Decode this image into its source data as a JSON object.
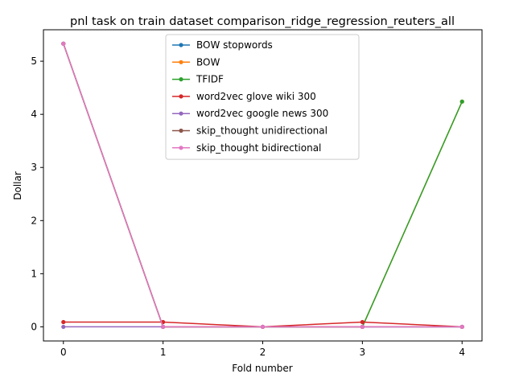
{
  "chart_data": {
    "type": "line",
    "title": "pnl task on train dataset comparison_ridge_regression_reuters_all",
    "xlabel": "Fold number",
    "ylabel": "Dollar",
    "x": [
      0,
      1,
      2,
      3,
      4
    ],
    "xlim": [
      -0.2,
      4.2
    ],
    "ylim": [
      -0.266,
      5.592
    ],
    "xticks": [
      0,
      1,
      2,
      3,
      4
    ],
    "yticks": [
      0,
      1,
      2,
      3,
      4,
      5
    ],
    "grid": false,
    "legend_position": "top-center",
    "series": [
      {
        "name": "BOW stopwords",
        "color": "#1f77b4",
        "values": [
          5.33,
          0.0,
          0.0,
          0.0,
          0.0
        ]
      },
      {
        "name": "BOW",
        "color": "#ff7f0e",
        "values": [
          5.33,
          0.0,
          0.0,
          0.0,
          4.24
        ]
      },
      {
        "name": "TFIDF",
        "color": "#2ca02c",
        "values": [
          5.33,
          0.0,
          0.0,
          0.0,
          4.24
        ]
      },
      {
        "name": "word2vec glove wiki 300",
        "color": "#d62728",
        "values": [
          0.09,
          0.09,
          0.0,
          0.09,
          0.0
        ]
      },
      {
        "name": "word2vec google news 300",
        "color": "#9467bd",
        "values": [
          0.0,
          0.0,
          0.0,
          0.0,
          0.0
        ]
      },
      {
        "name": "skip_thought unidirectional",
        "color": "#8c564b",
        "values": [
          5.33,
          0.0,
          0.0,
          0.0,
          0.0
        ]
      },
      {
        "name": "skip_thought bidirectional",
        "color": "#e377c2",
        "values": [
          5.33,
          0.0,
          0.0,
          0.0,
          0.0
        ]
      }
    ]
  }
}
